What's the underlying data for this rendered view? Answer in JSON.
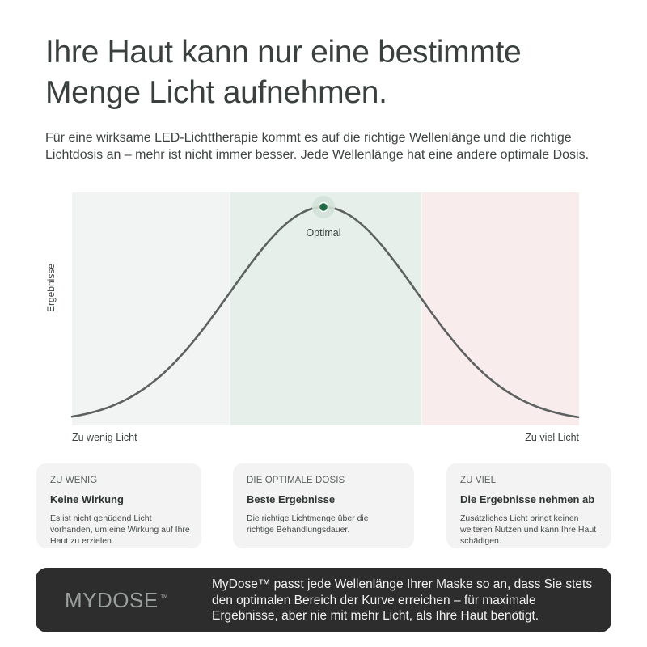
{
  "headline": {
    "line1": "Ihre Haut kann nur eine bestimmte",
    "line2": "Menge Licht aufnehmen."
  },
  "intro": "Für eine wirksame LED-Lichttherapie kommt es auf die richtige Wellenlänge und die richtige Lichtdosis an – mehr ist nicht immer besser. Jede Wellenlänge hat eine andere optimale Dosis.",
  "chart": {
    "y_axis_label": "Ergebnisse",
    "x_left_label": "Zu wenig Licht",
    "x_right_label": "Zu viel Licht",
    "peak_label": "Optimal",
    "curve": "bell",
    "zones": [
      {
        "name": "zu-wenig",
        "color": "#f2f4f3"
      },
      {
        "name": "optimal",
        "color": "#e7efea"
      },
      {
        "name": "zu-viel",
        "color": "#f8eced"
      }
    ],
    "curve_color": "#5d615f",
    "marker_color": "#1f6b45"
  },
  "cards": [
    {
      "kicker": "ZU WENIG",
      "title": "Keine Wirkung",
      "text": "Es ist nicht genügend Licht vorhanden, um eine Wirkung auf Ihre Haut zu erzielen."
    },
    {
      "kicker": "DIE OPTIMALE DOSIS",
      "title": "Beste Ergebnisse",
      "text": "Die richtige Lichtmenge über die richtige Behandlungsdauer."
    },
    {
      "kicker": "ZU VIEL",
      "title": "Die Ergebnisse nehmen ab",
      "text": "Zusätzliches Licht bringt keinen weiteren Nutzen und kann Ihre Haut schädigen."
    }
  ],
  "banner": {
    "brand": "MYDOSE",
    "brand_tm": "™",
    "text": "MyDose™ passt jede Wellenlänge Ihrer Maske so an, dass Sie stets den optimalen Bereich der Kurve erreichen – für maximale Ergebnisse, aber nie mit mehr Licht, als Ihre Haut benötigt."
  }
}
